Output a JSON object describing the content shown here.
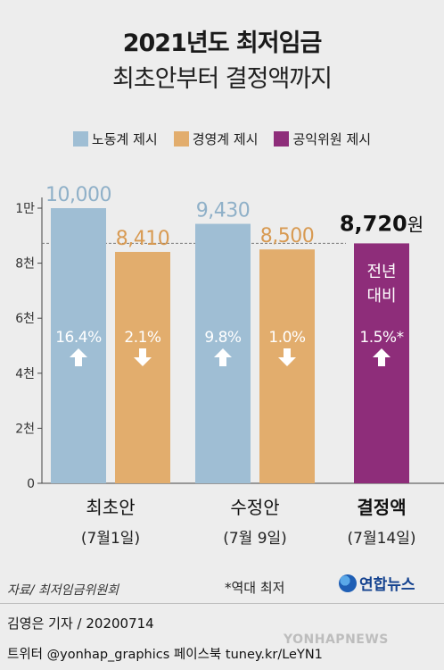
{
  "title": "2021년도 최저임금",
  "subtitle": "최초안부터 결정액까지",
  "legend": [
    {
      "label": "노동계 제시",
      "color": "#9fbed4"
    },
    {
      "label": "경영계 제시",
      "color": "#e2ad6d"
    },
    {
      "label": "공익위원 제시",
      "color": "#8e2d7a"
    }
  ],
  "chart_data": {
    "type": "bar",
    "ylim": [
      0,
      10000
    ],
    "y_ticks": [
      {
        "value": 0,
        "label": "0"
      },
      {
        "value": 2000,
        "label": "2천"
      },
      {
        "value": 4000,
        "label": "4천"
      },
      {
        "value": 6000,
        "label": "6천"
      },
      {
        "value": 8000,
        "label": "8천"
      },
      {
        "value": 10000,
        "label": "1만"
      }
    ],
    "reference_line": 8720,
    "groups": [
      {
        "label": "최초안",
        "date": "(7월1일)",
        "bold": false,
        "bars": [
          {
            "series": "노동계 제시",
            "value": 10000,
            "value_label": "10,000",
            "change": "16.4%",
            "direction": "up",
            "color": "#9fbed4"
          },
          {
            "series": "경영계 제시",
            "value": 8410,
            "value_label": "8,410",
            "change": "2.1%",
            "direction": "down",
            "color": "#e2ad6d"
          }
        ]
      },
      {
        "label": "수정안",
        "date": "(7월 9일)",
        "bold": false,
        "bars": [
          {
            "series": "노동계 제시",
            "value": 9430,
            "value_label": "9,430",
            "change": "9.8%",
            "direction": "up",
            "color": "#9fbed4"
          },
          {
            "series": "경영계 제시",
            "value": 8500,
            "value_label": "8,500",
            "change": "1.0%",
            "direction": "down",
            "color": "#e2ad6d"
          }
        ]
      },
      {
        "label": "결정액",
        "date": "(7월14일)",
        "bold": true,
        "bars": [
          {
            "series": "공익위원 제시",
            "value": 8720,
            "value_label": "8,720",
            "value_unit": "원",
            "inner_text": [
              "전년",
              "대비"
            ],
            "change": "1.5%*",
            "direction": "up",
            "color": "#8e2d7a"
          }
        ]
      }
    ]
  },
  "source": "자료/ 최저임금위원회",
  "note": "*역대 최저",
  "logo": "연합뉴스",
  "credit": "김영은 기자 / 20200714",
  "social": "트위터 @yonhap_graphics  페이스북 tuney.kr/LeYN1",
  "watermark": "YONHAPNEWS"
}
